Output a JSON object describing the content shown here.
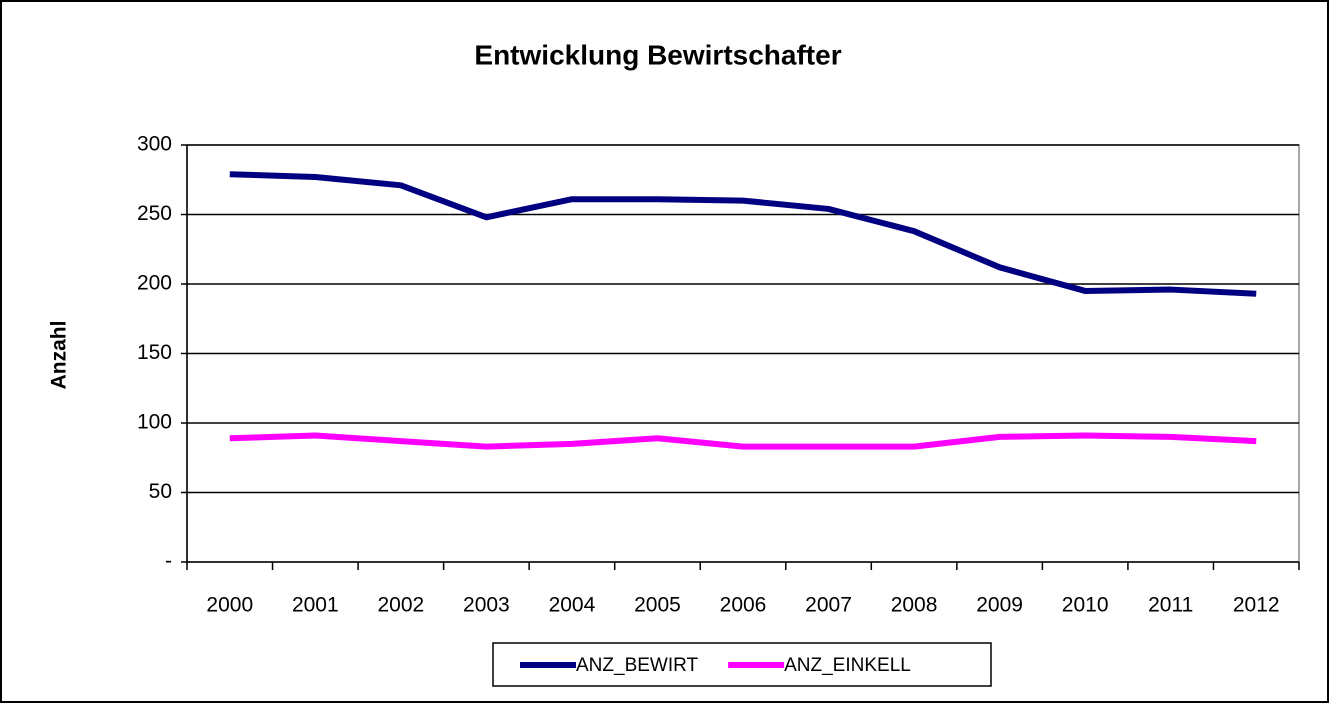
{
  "chart_data": {
    "type": "line",
    "title": "Entwicklung Bewirtschafter",
    "y_label": "Anzahl",
    "categories": [
      "2000",
      "2001",
      "2002",
      "2003",
      "2004",
      "2005",
      "2006",
      "2007",
      "2008",
      "2009",
      "2010",
      "2011",
      "2012"
    ],
    "series": [
      {
        "name": "ANZ_BEWIRT",
        "color": "#000080",
        "values": [
          279,
          277,
          271,
          248,
          261,
          261,
          260,
          254,
          238,
          212,
          195,
          196,
          193
        ]
      },
      {
        "name": "ANZ_EINKELL",
        "color": "#ff00ff",
        "values": [
          89,
          91,
          87,
          83,
          85,
          89,
          83,
          83,
          83,
          90,
          91,
          90,
          87
        ]
      }
    ],
    "ylim": [
      0,
      300
    ],
    "yticks": [
      {
        "value": 0,
        "label": "-"
      },
      50,
      100,
      150,
      200,
      250,
      300
    ],
    "grid": true,
    "legend": "bottom"
  }
}
